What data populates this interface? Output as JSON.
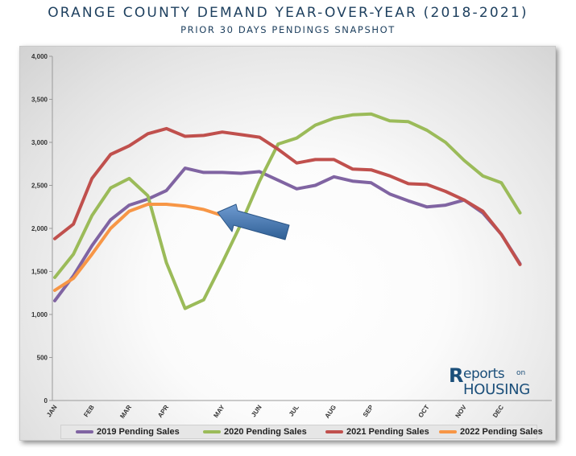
{
  "title": "ORANGE COUNTY DEMAND YEAR-OVER-YEAR (2018-2021)",
  "subtitle": "PRIOR 30 DAYS PENDINGS SNAPSHOT",
  "logo": {
    "r": "R",
    "top": "eports",
    "on": "on",
    "bottom": "HOUSING"
  },
  "chart_data": {
    "type": "line",
    "ylim": [
      0,
      4000
    ],
    "y_ticks": [
      0,
      500,
      1000,
      1500,
      2000,
      2500,
      3000,
      3500,
      4000
    ],
    "y_tick_labels": [
      "0",
      "500",
      "1,000",
      "1,500",
      "2,000",
      "2,500",
      "3,000",
      "3,500",
      "4,000"
    ],
    "x_count": 28,
    "x_tick_labels": [
      {
        "idx": 0,
        "label": "JAN"
      },
      {
        "idx": 2,
        "label": "FEB"
      },
      {
        "idx": 4,
        "label": "MAR"
      },
      {
        "idx": 6,
        "label": "APR"
      },
      {
        "idx": 9,
        "label": "MAY"
      },
      {
        "idx": 11,
        "label": "JUN"
      },
      {
        "idx": 13,
        "label": "JUL"
      },
      {
        "idx": 15,
        "label": "AUG"
      },
      {
        "idx": 17,
        "label": "SEP"
      },
      {
        "idx": 20,
        "label": "OCT"
      },
      {
        "idx": 22,
        "label": "NOV"
      },
      {
        "idx": 24,
        "label": "DEC"
      }
    ],
    "grid": false,
    "legend_position": "bottom",
    "series": [
      {
        "name": "2019 Pending Sales",
        "color": "#8064a2",
        "values": [
          1160,
          1450,
          1800,
          2100,
          2270,
          2340,
          2440,
          2700,
          2650,
          2650,
          2640,
          2660,
          2560,
          2460,
          2500,
          2600,
          2550,
          2530,
          2400,
          2320,
          2250,
          2270,
          2330,
          2180,
          1930,
          1590
        ]
      },
      {
        "name": "2020 Pending Sales",
        "color": "#9bbb59",
        "values": [
          1430,
          1700,
          2150,
          2470,
          2580,
          2380,
          1600,
          1070,
          1170,
          1600,
          2050,
          2550,
          2980,
          3050,
          3200,
          3280,
          3320,
          3330,
          3250,
          3240,
          3140,
          3000,
          2790,
          2610,
          2530,
          2180
        ]
      },
      {
        "name": "2021 Pending Sales",
        "color": "#c0504d",
        "values": [
          1880,
          2050,
          2580,
          2860,
          2960,
          3100,
          3160,
          3070,
          3080,
          3120,
          3090,
          3060,
          2920,
          2760,
          2800,
          2800,
          2690,
          2680,
          2610,
          2520,
          2510,
          2430,
          2330,
          2200,
          1930,
          1580
        ]
      },
      {
        "name": "2022 Pending Sales",
        "color": "#f79646",
        "values": [
          1280,
          1420,
          1700,
          2000,
          2200,
          2280,
          2280,
          2260,
          2220,
          2150
        ]
      }
    ],
    "annotations": [
      {
        "type": "arrow",
        "color": "#4f81bd",
        "points_to": "2022 Pending Sales"
      }
    ]
  }
}
